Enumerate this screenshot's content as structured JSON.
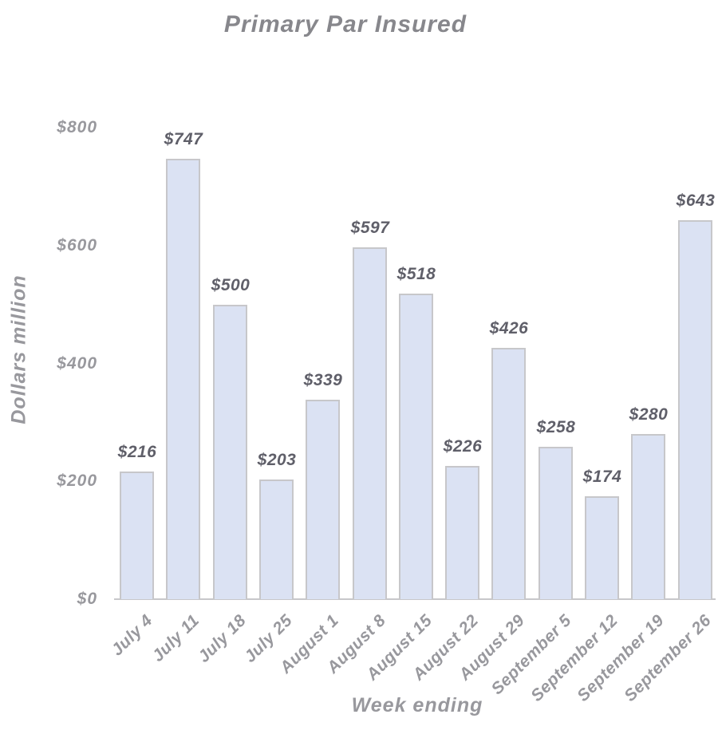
{
  "chart_data": {
    "type": "bar",
    "title": "Primary Par Insured",
    "xlabel": "Week ending",
    "ylabel": "Dollars million",
    "categories": [
      "July 4",
      "July 11",
      "July 18",
      "July 25",
      "August 1",
      "August 8",
      "August 15",
      "August 22",
      "August 29",
      "September 5",
      "September 12",
      "September 19",
      "September 26"
    ],
    "values": [
      216,
      747,
      500,
      203,
      339,
      597,
      518,
      226,
      426,
      258,
      174,
      280,
      643
    ],
    "value_labels": [
      "$216",
      "$747",
      "$500",
      "$203",
      "$339",
      "$597",
      "$518",
      "$226",
      "$426",
      "$258",
      "$174",
      "$280",
      "$643"
    ],
    "y_ticks": [
      {
        "value": 0,
        "label": "$0"
      },
      {
        "value": 200,
        "label": "$200"
      },
      {
        "value": 400,
        "label": "$400"
      },
      {
        "value": 600,
        "label": "$600"
      },
      {
        "value": 800,
        "label": "$800"
      }
    ],
    "ylim": [
      0,
      800
    ],
    "grid": false,
    "legend": "none",
    "colors": {
      "bar_fill": "#dbe2f3",
      "bar_border": "#c7c7ca",
      "axis_line": "#c7c7ca",
      "title_text": "#87878c",
      "axis_text": "#98989d",
      "value_text": "#5f5f69"
    }
  }
}
